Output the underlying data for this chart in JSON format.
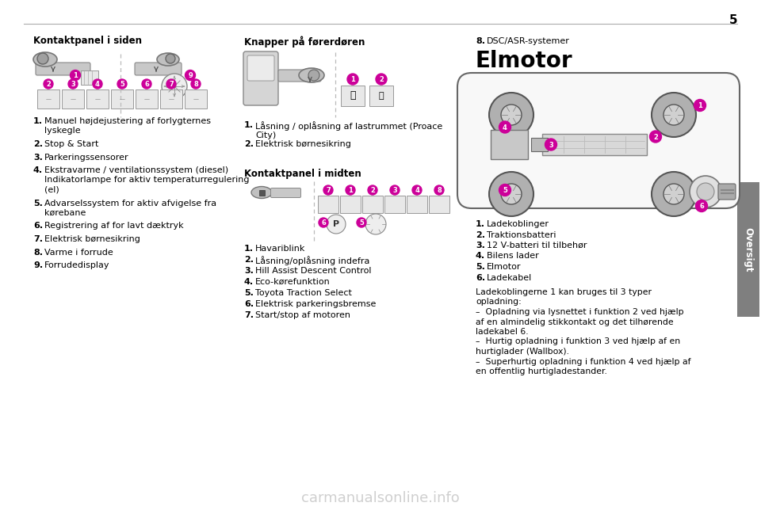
{
  "page_number": "5",
  "bg": "#ffffff",
  "text_color": "#000000",
  "gray_tab_color": "#7f7f7f",
  "tab_text": "Oversigt",
  "bullet_color": "#cc0099",
  "bullet_fg": "#ffffff",
  "line_color": "#aaaaaa",
  "s1_title": "Kontaktpanel i siden",
  "s1_items": [
    [
      "Manuel højdejustering af forlygternes",
      "lyskegle"
    ],
    [
      "Stop & Start"
    ],
    [
      "Parkeringssensorer"
    ],
    [
      "Ekstravarme / ventilationssystem (diesel)",
      "Indikatorlampe for aktiv temperaturregulering",
      "(el)"
    ],
    [
      "Advarselssystem for aktiv afvigelse fra",
      "kørebane"
    ],
    [
      "Registrering af for lavt dæktryk"
    ],
    [
      "Elektrisk børnesikring"
    ],
    [
      "Varme i forrude"
    ],
    [
      "Forrudedisplay"
    ]
  ],
  "s2_title": "Knapper på førerdøren",
  "s2_items": [
    [
      "Låsning / oplåsning af lastrummet (Proace",
      "City)"
    ],
    [
      "Elektrisk børnesikring"
    ]
  ],
  "s3_title": "Kontaktpanel i midten",
  "s3_items": [
    [
      "Havariblink"
    ],
    [
      "Låsning/oplåsning indefra"
    ],
    [
      "Hill Assist Descent Control"
    ],
    [
      "Eco-kørefunktion"
    ],
    [
      "Toyota Traction Select"
    ],
    [
      "Elektrisk parkeringsbremse"
    ],
    [
      "Start/stop af motoren"
    ]
  ],
  "s4_item8": "DSC/ASR-systemer",
  "s4_title": "Elmotor",
  "s4_items": [
    "Ladekoblinger",
    "Traktionsbatteri",
    "12 V-batteri til tilbehør",
    "Bilens lader",
    "Elmotor",
    "Ladekabel"
  ],
  "s4_para": [
    "Ladekoblingerne 1 kan bruges til 3 typer",
    "opladning:",
    "–  Opladning via lysnettet i funktion 2 ved hjælp",
    "af en almindelig stikkontakt og det tilhørende",
    "ladekabel 6.",
    "–  Hurtig opladning i funktion 3 ved hjælp af en",
    "hurtiglader (Wallbox).",
    "–  Superhurtig opladning i funktion 4 ved hjælp af",
    "en offentlig hurtigladestander."
  ],
  "watermark": "carmanualsonline.info"
}
